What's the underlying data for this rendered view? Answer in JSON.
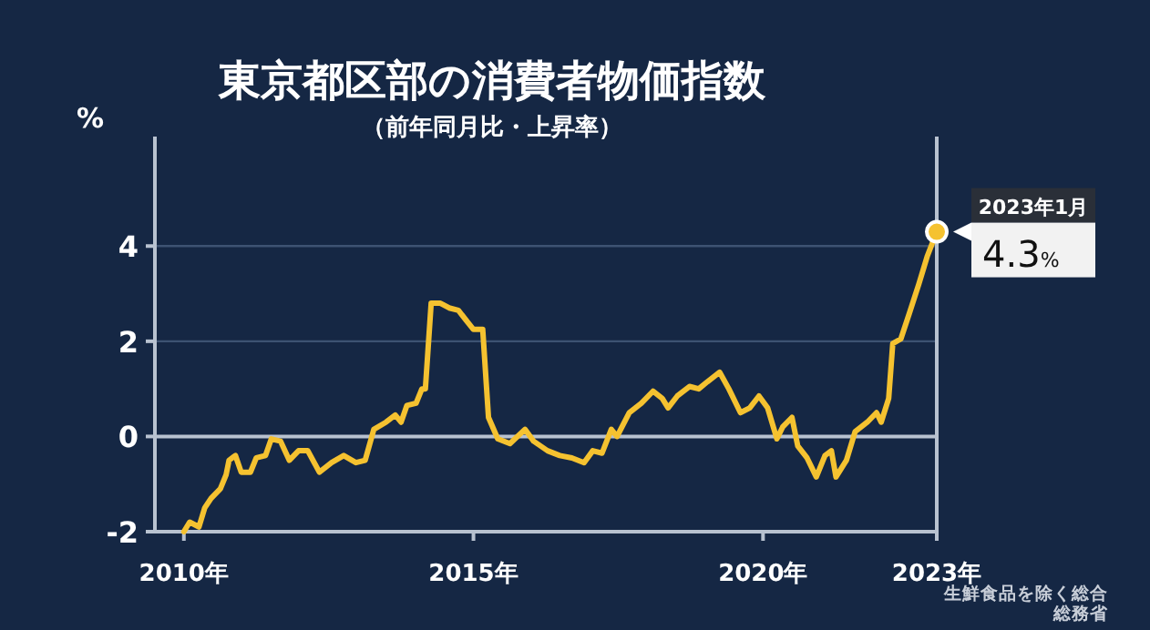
{
  "chart_data": {
    "type": "line",
    "title": "東京都区部の消費者物価指数",
    "subtitle": "（前年同月比・上昇率）",
    "ylabel": "%",
    "xlim": [
      2009.5,
      2023
    ],
    "ylim": [
      -2,
      6.3
    ],
    "xticks": [
      {
        "value": 2010,
        "label": "2010年"
      },
      {
        "value": 2015,
        "label": "2015年"
      },
      {
        "value": 2020,
        "label": "2020年"
      },
      {
        "value": 2023,
        "label": "2023年"
      }
    ],
    "yticks": [
      -2,
      0,
      2,
      4
    ],
    "grid": "y",
    "marker": "none",
    "line_style": "solid",
    "ref_lines": [
      {
        "axis": "y",
        "value": 0,
        "color": "#b8c2d0"
      },
      {
        "axis": "x",
        "value": 2023,
        "color": "#b8c2d0"
      }
    ],
    "series": [
      {
        "color": "#f5c230",
        "x": [
          2010.0,
          2010.1,
          2010.26,
          2010.36,
          2010.47,
          2010.63,
          2010.73,
          2010.78,
          2010.89,
          2010.99,
          2011.15,
          2011.25,
          2011.41,
          2011.51,
          2011.67,
          2011.82,
          2011.98,
          2012.14,
          2012.34,
          2012.55,
          2012.76,
          2012.97,
          2013.13,
          2013.28,
          2013.49,
          2013.65,
          2013.75,
          2013.85,
          2014.01,
          2014.11,
          2014.17,
          2014.27,
          2014.43,
          2014.58,
          2014.74,
          2014.9,
          2015.0,
          2015.16,
          2015.26,
          2015.42,
          2015.63,
          2015.89,
          2016.04,
          2016.28,
          2016.49,
          2016.7,
          2016.91,
          2017.06,
          2017.22,
          2017.38,
          2017.48,
          2017.69,
          2017.9,
          2018.1,
          2018.26,
          2018.36,
          2018.52,
          2018.73,
          2018.89,
          2019.04,
          2019.25,
          2019.41,
          2019.61,
          2019.77,
          2019.93,
          2020.08,
          2020.24,
          2020.34,
          2020.5,
          2020.6,
          2020.76,
          2020.92,
          2021.07,
          2021.18,
          2021.26,
          2021.44,
          2021.59,
          2021.8,
          2021.96,
          2022.04,
          2022.17,
          2022.24,
          2022.38,
          2022.53,
          2022.69,
          2022.84,
          2023.0
        ],
        "values": [
          -2.0,
          -1.8,
          -1.9,
          -1.5,
          -1.3,
          -1.1,
          -0.8,
          -0.5,
          -0.4,
          -0.75,
          -0.75,
          -0.45,
          -0.4,
          -0.05,
          -0.1,
          -0.5,
          -0.3,
          -0.3,
          -0.75,
          -0.55,
          -0.4,
          -0.55,
          -0.5,
          0.15,
          0.3,
          0.45,
          0.3,
          0.65,
          0.7,
          1.0,
          1.0,
          2.8,
          2.8,
          2.7,
          2.65,
          2.4,
          2.25,
          2.25,
          0.4,
          -0.05,
          -0.15,
          0.15,
          -0.1,
          -0.3,
          -0.4,
          -0.45,
          -0.55,
          -0.3,
          -0.35,
          0.15,
          0.0,
          0.5,
          0.7,
          0.95,
          0.8,
          0.6,
          0.85,
          1.05,
          1.0,
          1.15,
          1.35,
          1.0,
          0.5,
          0.6,
          0.85,
          0.6,
          -0.05,
          0.2,
          0.4,
          -0.2,
          -0.45,
          -0.85,
          -0.4,
          -0.3,
          -0.85,
          -0.5,
          0.1,
          0.3,
          0.5,
          0.3,
          0.8,
          1.95,
          2.05,
          2.6,
          3.2,
          3.8,
          4.3
        ]
      }
    ],
    "annotations": [
      {
        "text": "2023年1月",
        "x": 2023,
        "y": 4.3
      },
      {
        "text": "4.3%",
        "x": 2023,
        "y": 4.3
      },
      "生鮮食品を除く総合",
      "総務省"
    ]
  }
}
